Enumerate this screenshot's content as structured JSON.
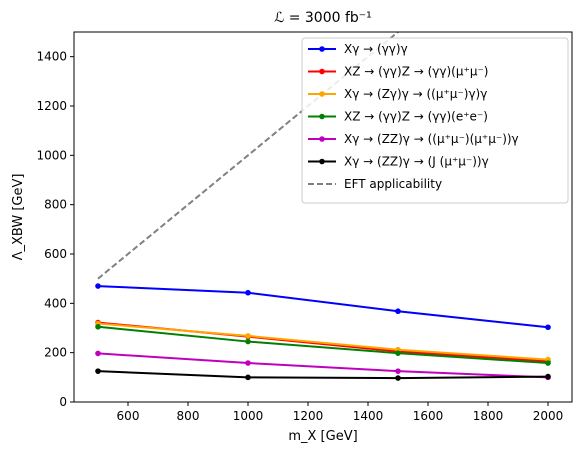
{
  "chart_data": {
    "type": "line",
    "title": "ℒ = 3000 fb⁻¹",
    "xlabel": "m_X [GeV]",
    "ylabel": "Λ_XBW [GeV]",
    "xlim": [
      420,
      2080
    ],
    "ylim": [
      0,
      1500
    ],
    "xticks": [
      600,
      800,
      1000,
      1200,
      1400,
      1600,
      1800,
      2000
    ],
    "yticks": [
      0,
      200,
      400,
      600,
      800,
      1000,
      1200,
      1400
    ],
    "grid": false,
    "legend_position": "top-right",
    "x": [
      500,
      1000,
      1500,
      2000
    ],
    "series": [
      {
        "name": "Xγ → (γγ)γ",
        "color": "#0000ff",
        "values": [
          470,
          443,
          368,
          303
        ]
      },
      {
        "name": "XZ → (γγ)Z → (γγ)(μ⁺μ⁻)",
        "color": "#ff0000",
        "values": [
          322,
          265,
          205,
          165
        ]
      },
      {
        "name": "Xγ → (Zγ)γ → ((μ⁺μ⁻)γ)γ",
        "color": "#ffa500",
        "values": [
          318,
          268,
          212,
          172
        ]
      },
      {
        "name": "XZ → (γγ)Z → (γγ)(e⁺e⁻)",
        "color": "#008000",
        "values": [
          305,
          245,
          198,
          158
        ]
      },
      {
        "name": "Xγ → (ZZ)γ → ((μ⁺μ⁻)(μ⁺μ⁻))γ",
        "color": "#c000c0",
        "values": [
          197,
          158,
          125,
          100
        ]
      },
      {
        "name": "Xγ → (ZZ)γ → (J (μ⁺μ⁻))γ",
        "color": "#000000",
        "values": [
          125,
          100,
          97,
          103
        ]
      }
    ],
    "reference_line": {
      "name": "EFT applicability",
      "color": "#808080",
      "style": "dashed",
      "x": [
        500,
        1500
      ],
      "y": [
        500,
        1500
      ]
    }
  }
}
